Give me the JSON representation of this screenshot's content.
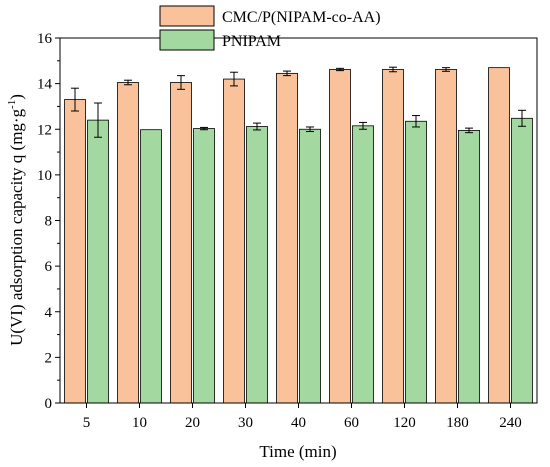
{
  "chart_data": {
    "type": "bar",
    "xlabel": "Time (min)",
    "ylabel_prefix": "U(VI) adsorption capacity q (mg·g",
    "ylabel_sup": "-1",
    "ylabel_suffix": ")",
    "categories": [
      "5",
      "10",
      "20",
      "30",
      "40",
      "60",
      "120",
      "180",
      "240"
    ],
    "ylim": [
      0,
      16
    ],
    "yticks": [
      0,
      2,
      4,
      6,
      8,
      10,
      12,
      14,
      16
    ],
    "legend_position": "top-right",
    "series": [
      {
        "name": "CMC/P(NIPAM-co-AA)",
        "color": "#FAC29A",
        "values": [
          13.3,
          14.05,
          14.05,
          14.2,
          14.45,
          14.62,
          14.62,
          14.62,
          14.7
        ],
        "errors": [
          0.5,
          0.1,
          0.3,
          0.3,
          0.1,
          0.05,
          0.1,
          0.08,
          0.0
        ]
      },
      {
        "name": "PNIPAM",
        "color": "#A3D9A1",
        "values": [
          12.4,
          11.98,
          12.03,
          12.12,
          12.0,
          12.15,
          12.35,
          11.95,
          12.48
        ],
        "errors": [
          0.75,
          0.0,
          0.05,
          0.15,
          0.1,
          0.15,
          0.25,
          0.1,
          0.35
        ]
      }
    ]
  }
}
